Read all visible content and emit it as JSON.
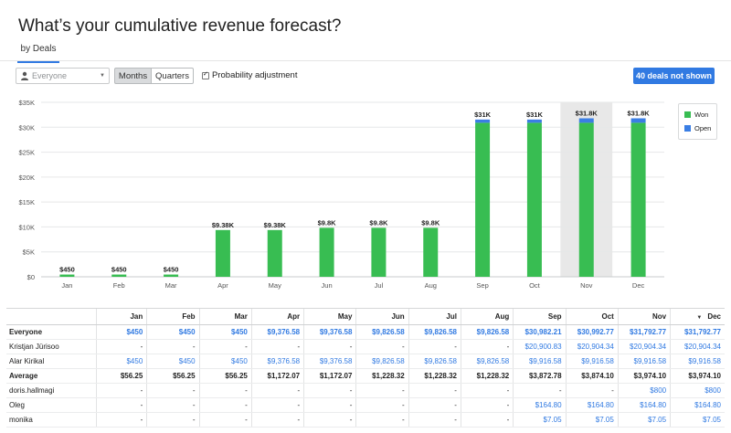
{
  "page": {
    "title": "What’s your cumulative revenue forecast?",
    "tab": "by Deals"
  },
  "toolbar": {
    "filter_value": "Everyone",
    "months_label": "Months",
    "quarters_label": "Quarters",
    "probability_label": "Probability adjustment",
    "probability_checked": true,
    "deals_button": "40 deals not shown"
  },
  "colors": {
    "won": "#38bd52",
    "open": "#3a7ee4",
    "accent": "#317ae2",
    "highlight": "#e8e8e8"
  },
  "chart_data": {
    "type": "bar",
    "stacked": true,
    "categories": [
      "Jan",
      "Feb",
      "Mar",
      "Apr",
      "May",
      "Jun",
      "Jul",
      "Aug",
      "Sep",
      "Oct",
      "Nov",
      "Dec"
    ],
    "series": [
      {
        "name": "Won",
        "values": [
          450,
          450,
          450,
          9376.58,
          9376.58,
          9826.58,
          9826.58,
          9826.58,
          30900,
          30900,
          30900,
          30900
        ]
      },
      {
        "name": "Open",
        "values": [
          0,
          0,
          0,
          0,
          0,
          0,
          0,
          0,
          82.21,
          92.77,
          892.77,
          892.77
        ]
      }
    ],
    "data_labels": [
      "$450",
      "$450",
      "$450",
      "$9.38K",
      "$9.38K",
      "$9.8K",
      "$9.8K",
      "$9.8K",
      "$31K",
      "$31K",
      "$31.8K",
      "$31.8K"
    ],
    "y_ticks": [
      "$0",
      "$5K",
      "$10K",
      "$15K",
      "$20K",
      "$25K",
      "$30K",
      "$35K"
    ],
    "ylim": [
      0,
      35000
    ],
    "highlighted_category": "Nov",
    "grid": true,
    "legend": "right"
  },
  "table": {
    "columns": [
      "",
      "Jan",
      "Feb",
      "Mar",
      "Apr",
      "May",
      "Jun",
      "Jul",
      "Aug",
      "Sep",
      "Oct",
      "Nov",
      "Dec"
    ],
    "rows": [
      {
        "name": "Everyone",
        "bold": true,
        "cells": [
          "$450",
          "$450",
          "$450",
          "$9,376.58",
          "$9,376.58",
          "$9,826.58",
          "$9,826.58",
          "$9,826.58",
          "$30,982.21",
          "$30,992.77",
          "$31,792.77",
          "$31,792.77"
        ],
        "blue": true
      },
      {
        "name": "Kristjan Jürisoo",
        "bold": false,
        "cells": [
          "-",
          "-",
          "-",
          "-",
          "-",
          "-",
          "-",
          "-",
          "$20,900.83",
          "$20,904.34",
          "$20,904.34",
          "$20,904.34"
        ],
        "blue": true
      },
      {
        "name": "Alar Kirikal",
        "bold": false,
        "cells": [
          "$450",
          "$450",
          "$450",
          "$9,376.58",
          "$9,376.58",
          "$9,826.58",
          "$9,826.58",
          "$9,826.58",
          "$9,916.58",
          "$9,916.58",
          "$9,916.58",
          "$9,916.58"
        ],
        "blue": true
      },
      {
        "name": "Average",
        "bold": true,
        "cells": [
          "$56.25",
          "$56.25",
          "$56.25",
          "$1,172.07",
          "$1,172.07",
          "$1,228.32",
          "$1,228.32",
          "$1,228.32",
          "$3,872.78",
          "$3,874.10",
          "$3,974.10",
          "$3,974.10"
        ],
        "blue": false
      },
      {
        "name": "doris.hallmagi",
        "bold": false,
        "cells": [
          "-",
          "-",
          "-",
          "-",
          "-",
          "-",
          "-",
          "-",
          "-",
          "-",
          "$800",
          "$800"
        ],
        "blue": true
      },
      {
        "name": "Oleg",
        "bold": false,
        "cells": [
          "-",
          "-",
          "-",
          "-",
          "-",
          "-",
          "-",
          "-",
          "$164.80",
          "$164.80",
          "$164.80",
          "$164.80"
        ],
        "blue": true
      },
      {
        "name": "monika",
        "bold": false,
        "cells": [
          "-",
          "-",
          "-",
          "-",
          "-",
          "-",
          "-",
          "-",
          "$7.05",
          "$7.05",
          "$7.05",
          "$7.05"
        ],
        "blue": true
      }
    ]
  }
}
